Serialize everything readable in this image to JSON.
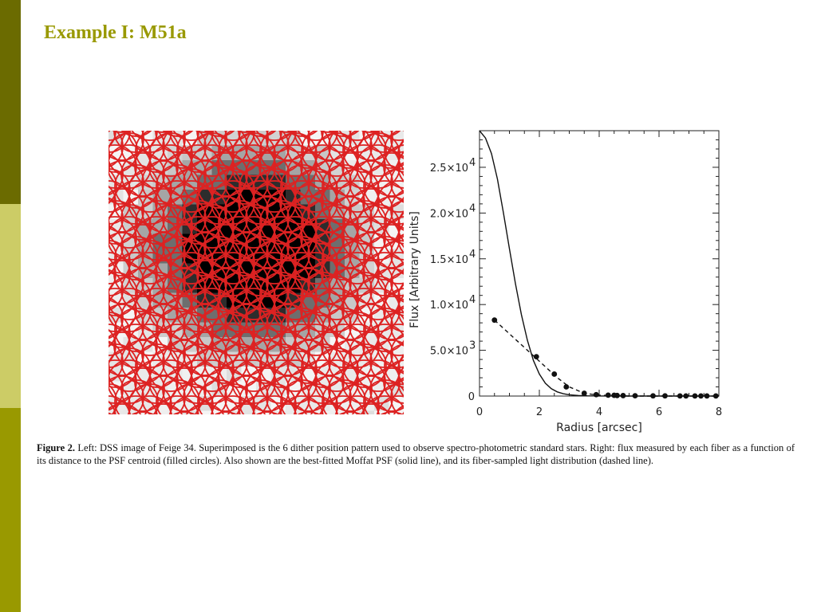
{
  "slide": {
    "title": "Example I: M51a",
    "accent_colors": {
      "dark": "#6b6b00",
      "light": "#cccc66",
      "mid": "#999900"
    }
  },
  "figure": {
    "caption_label": "Figure 2.",
    "caption_text": " Left: DSS image of Feige 34. Superimposed is the 6 dither position pattern used to observe spectro-photometric standard stars. Right: flux measured by each fiber as a function of its distance to the PSF centroid (filled circles). Also shown are the best-fitted Moffat PSF (solid line), and its fiber-sampled light distribution (dashed line).",
    "overlay_color": "#dd2222"
  },
  "chart_data": {
    "type": "line",
    "xlabel": "Radius [arcsec]",
    "ylabel": "Flux [Arbitrary Units]",
    "xlim": [
      0,
      8
    ],
    "ylim": [
      0,
      29000
    ],
    "x_ticks": [
      0,
      2,
      4,
      6,
      8
    ],
    "x_tick_labels": [
      "0",
      "2",
      "4",
      "6",
      "8"
    ],
    "y_ticks": [
      0,
      5000,
      10000,
      15000,
      20000,
      25000
    ],
    "y_tick_labels": [
      {
        "mant": "0",
        "exp": ""
      },
      {
        "mant": "5.0×10",
        "exp": "3"
      },
      {
        "mant": "1.0×10",
        "exp": "4"
      },
      {
        "mant": "1.5×10",
        "exp": "4"
      },
      {
        "mant": "2.0×10",
        "exp": "4"
      },
      {
        "mant": "2.5×10",
        "exp": "4"
      }
    ],
    "grid": false,
    "series": [
      {
        "style": "solid",
        "x": [
          0,
          0.2,
          0.4,
          0.6,
          0.8,
          1.0,
          1.2,
          1.4,
          1.6,
          1.8,
          2.0,
          2.2,
          2.4,
          2.6,
          2.8,
          3.0,
          3.3,
          3.6,
          4.0,
          5.0,
          6.0,
          7.0,
          8.0
        ],
        "y": [
          29000,
          28200,
          26500,
          23700,
          20000,
          16100,
          12300,
          8900,
          6100,
          3900,
          2400,
          1400,
          800,
          450,
          250,
          140,
          60,
          25,
          10,
          0,
          0,
          0,
          0
        ]
      },
      {
        "style": "dashed",
        "x": [
          0.5,
          1.0,
          1.5,
          1.9,
          2.3,
          2.6,
          3.0,
          3.5,
          4.0,
          5.0,
          6.0,
          7.0,
          8.0
        ],
        "y": [
          8300,
          6800,
          5300,
          4100,
          2900,
          2000,
          1000,
          300,
          100,
          0,
          0,
          0,
          0
        ]
      },
      {
        "style": "points",
        "x": [
          0.5,
          1.9,
          2.5,
          2.9,
          3.5,
          3.9,
          4.3,
          4.5,
          4.6,
          4.8,
          5.2,
          5.8,
          6.2,
          6.7,
          6.9,
          7.2,
          7.4,
          7.6,
          7.9
        ],
        "y": [
          8300,
          4300,
          2400,
          1000,
          300,
          150,
          100,
          80,
          60,
          50,
          30,
          20,
          20,
          10,
          10,
          10,
          10,
          10,
          10
        ]
      }
    ]
  }
}
